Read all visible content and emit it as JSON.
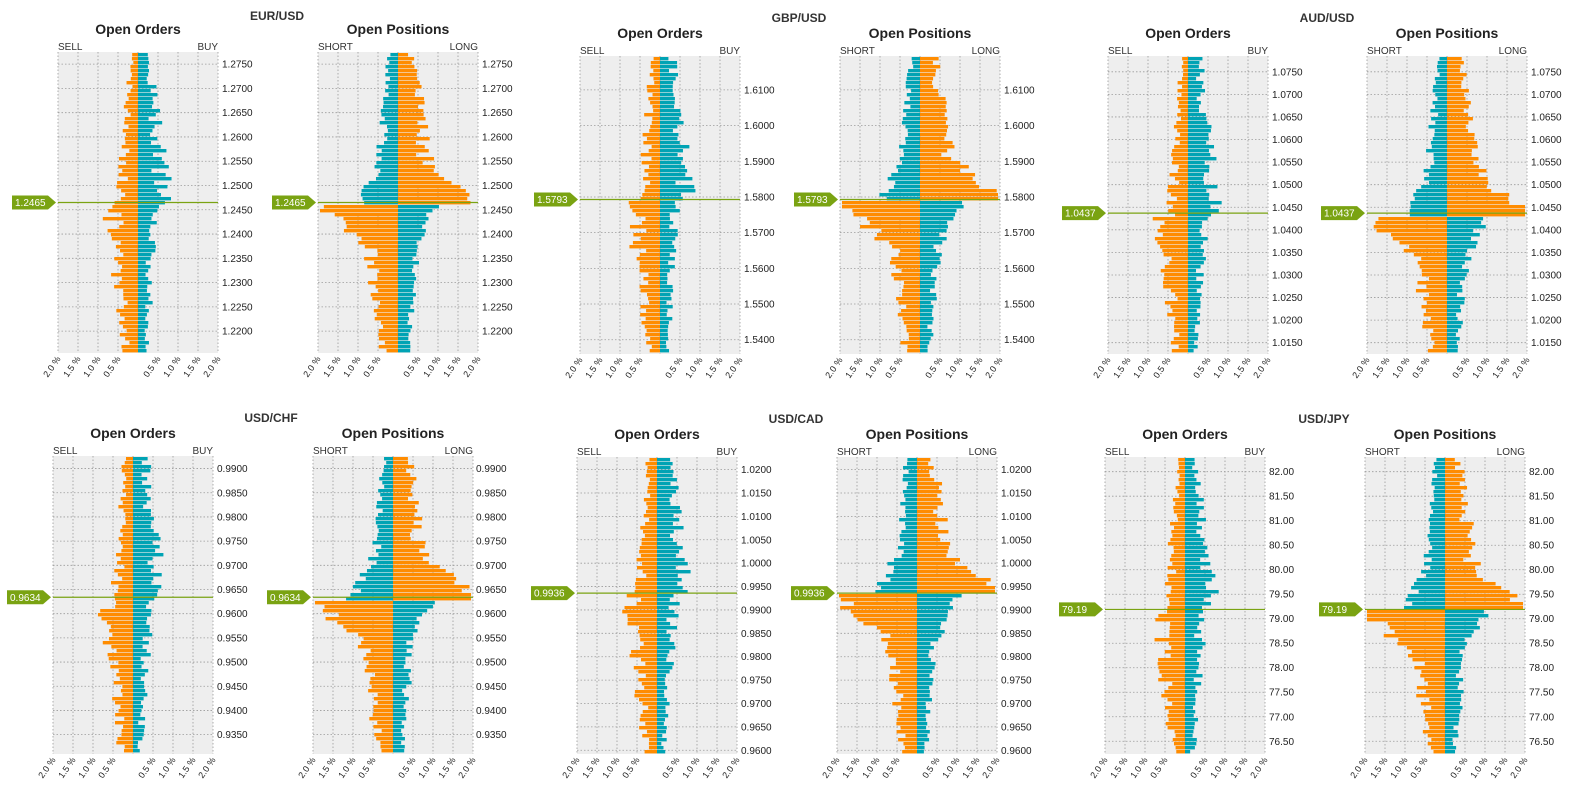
{
  "colors": {
    "sell": "#ff8c00",
    "buy": "#00a3b4",
    "price_line": "#7aa312",
    "plot_bg": "#eeeeee",
    "grid": "#9a9a9a"
  },
  "chart_data": [
    {
      "type": "bar",
      "pair": "EUR/USD",
      "orders": {
        "title": "Open Orders",
        "left_label": "SELL",
        "right_label": "BUY"
      },
      "positions": {
        "title": "Open Positions",
        "left_label": "SHORT",
        "right_label": "LONG"
      },
      "xlim": [
        -2.0,
        2.0
      ],
      "x_tick_labels": [
        "2.0 %",
        "1.5 %",
        "1.0 %",
        "0.5 %",
        "",
        "0.5 %",
        "1.0 %",
        "1.5 %",
        "2.0 %"
      ],
      "ylim": [
        1.2155,
        1.2775
      ],
      "yticks": [
        1.22,
        1.225,
        1.23,
        1.235,
        1.24,
        1.245,
        1.25,
        1.255,
        1.26,
        1.265,
        1.27,
        1.275
      ],
      "ytick_labels": [
        "1.2200",
        "1.2250",
        "1.2300",
        "1.2350",
        "1.2400",
        "1.2450",
        "1.2500",
        "1.2550",
        "1.2600",
        "1.2650",
        "1.2700",
        "1.2750"
      ],
      "current_price": 1.2465,
      "current_price_label": "1.2465"
    },
    {
      "type": "bar",
      "pair": "GBP/USD",
      "orders": {
        "title": "Open Orders",
        "left_label": "SELL",
        "right_label": "BUY"
      },
      "positions": {
        "title": "Open Positions",
        "left_label": "SHORT",
        "right_label": "LONG"
      },
      "xlim": [
        -2.0,
        2.0
      ],
      "x_tick_labels": [
        "2.0 %",
        "1.5 %",
        "1.0 %",
        "0.5 %",
        "",
        "0.5 %",
        "1.0 %",
        "1.5 %",
        "2.0 %"
      ],
      "ylim": [
        1.536,
        1.6195
      ],
      "yticks": [
        1.54,
        1.55,
        1.56,
        1.57,
        1.58,
        1.59,
        1.6,
        1.61
      ],
      "ytick_labels": [
        "1.5400",
        "1.5500",
        "1.5600",
        "1.5700",
        "1.5800",
        "1.5900",
        "1.6000",
        "1.6100"
      ],
      "current_price": 1.5793,
      "current_price_label": "1.5793"
    },
    {
      "type": "bar",
      "pair": "AUD/USD",
      "orders": {
        "title": "Open Orders",
        "left_label": "SELL",
        "right_label": "BUY"
      },
      "positions": {
        "title": "Open Positions",
        "left_label": "SHORT",
        "right_label": "LONG"
      },
      "xlim": [
        -2.0,
        2.0
      ],
      "x_tick_labels": [
        "2.0 %",
        "1.5 %",
        "1.0 %",
        "0.5 %",
        "",
        "0.5 %",
        "1.0 %",
        "1.5 %",
        "2.0 %"
      ],
      "ylim": [
        1.0125,
        1.0785
      ],
      "yticks": [
        1.015,
        1.02,
        1.025,
        1.03,
        1.035,
        1.04,
        1.045,
        1.05,
        1.055,
        1.06,
        1.065,
        1.07,
        1.075
      ],
      "ytick_labels": [
        "1.0150",
        "1.0200",
        "1.0250",
        "1.0300",
        "1.0350",
        "1.0400",
        "1.0450",
        "1.0500",
        "1.0550",
        "1.0600",
        "1.0650",
        "1.0700",
        "1.0750"
      ],
      "current_price": 1.0437,
      "current_price_label": "1.0437"
    },
    {
      "type": "bar",
      "pair": "USD/CHF",
      "orders": {
        "title": "Open Orders",
        "left_label": "SELL",
        "right_label": "BUY"
      },
      "positions": {
        "title": "Open Positions",
        "left_label": "SHORT",
        "right_label": "LONG"
      },
      "xlim": [
        -2.0,
        2.0
      ],
      "x_tick_labels": [
        "2.0 %",
        "1.5 %",
        "1.0 %",
        "0.5 %",
        "",
        "0.5 %",
        "1.0 %",
        "1.5 %",
        "2.0 %"
      ],
      "ylim": [
        0.931,
        0.9926
      ],
      "yticks": [
        0.935,
        0.94,
        0.945,
        0.95,
        0.955,
        0.96,
        0.965,
        0.97,
        0.975,
        0.98,
        0.985,
        0.99
      ],
      "ytick_labels": [
        "0.9350",
        "0.9400",
        "0.9450",
        "0.9500",
        "0.9550",
        "0.9600",
        "0.9650",
        "0.9700",
        "0.9750",
        "0.9800",
        "0.9850",
        "0.9900"
      ],
      "current_price": 0.9634,
      "current_price_label": "0.9634"
    },
    {
      "type": "bar",
      "pair": "USD/CAD",
      "orders": {
        "title": "Open Orders",
        "left_label": "SELL",
        "right_label": "BUY"
      },
      "positions": {
        "title": "Open Positions",
        "left_label": "SHORT",
        "right_label": "LONG"
      },
      "xlim": [
        -2.0,
        2.0
      ],
      "x_tick_labels": [
        "2.0 %",
        "1.5 %",
        "1.0 %",
        "0.5 %",
        "",
        "0.5 %",
        "1.0 %",
        "1.5 %",
        "2.0 %"
      ],
      "ylim": [
        0.9592,
        1.0227
      ],
      "yticks": [
        0.96,
        0.965,
        0.97,
        0.975,
        0.98,
        0.985,
        0.99,
        0.995,
        1.0,
        1.005,
        1.01,
        1.015,
        1.02
      ],
      "ytick_labels": [
        "0.9600",
        "0.9650",
        "0.9700",
        "0.9750",
        "0.9800",
        "0.9850",
        "0.9900",
        "0.9950",
        "1.0000",
        "1.0050",
        "1.0100",
        "1.0150",
        "1.0200"
      ],
      "current_price": 0.9936,
      "current_price_label": "0.9936"
    },
    {
      "type": "bar",
      "pair": "USD/JPY",
      "orders": {
        "title": "Open Orders",
        "left_label": "SELL",
        "right_label": "BUY"
      },
      "positions": {
        "title": "Open Positions",
        "left_label": "SHORT",
        "right_label": "LONG"
      },
      "xlim": [
        -2.0,
        2.0
      ],
      "x_tick_labels": [
        "2.0 %",
        "1.5 %",
        "1.0 %",
        "0.5 %",
        "",
        "0.5 %",
        "1.0 %",
        "1.5 %",
        "2.0 %"
      ],
      "ylim": [
        76.24,
        82.3
      ],
      "yticks": [
        76.5,
        77.0,
        77.5,
        78.0,
        78.5,
        79.0,
        79.5,
        80.0,
        80.5,
        81.0,
        81.5,
        82.0
      ],
      "ytick_labels": [
        "76.50",
        "77.00",
        "77.50",
        "78.00",
        "78.50",
        "79.00",
        "79.50",
        "80.00",
        "80.50",
        "81.00",
        "81.50",
        "82.00"
      ],
      "current_price": 79.19,
      "current_price_label": "79.19"
    }
  ]
}
